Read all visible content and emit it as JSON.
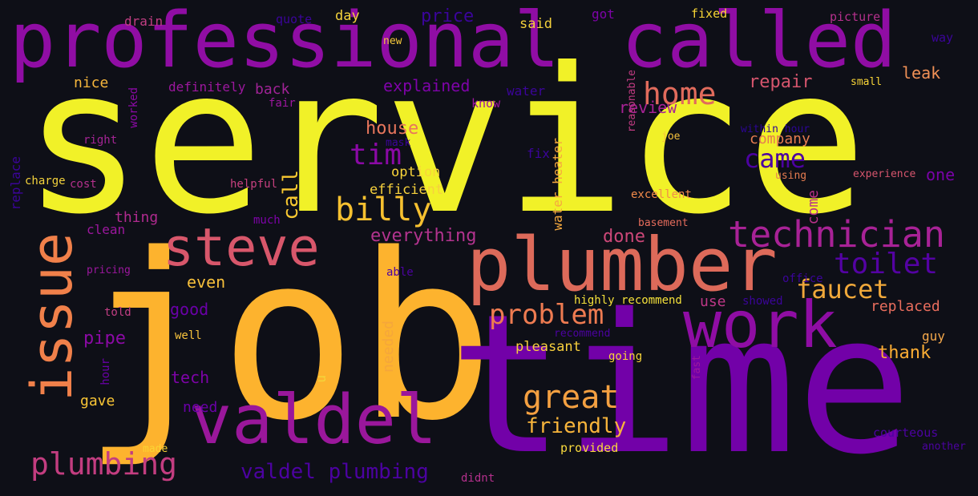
{
  "palette": {
    "background": "#0e0f17",
    "yellow": "#f1f128",
    "gold": "#f6d034",
    "amber": "#fdb32e",
    "orange": "#f4924a",
    "salmon": "#e16b5c",
    "pink": "#cd5178",
    "magenta": "#b3338f",
    "purple": "#900da4",
    "violet": "#6e00a8",
    "indigo": "#4c02a1",
    "navy": "#2f0596"
  },
  "words": [
    {
      "text": "service",
      "color": "#f1f128"
    },
    {
      "text": "job",
      "color": "#fdb32e"
    },
    {
      "text": "time",
      "color": "#7201a8"
    },
    {
      "text": "professional",
      "color": "#900da4"
    },
    {
      "text": "called",
      "color": "#900da4"
    },
    {
      "text": "plumber",
      "color": "#dd6a5a"
    },
    {
      "text": "work",
      "color": "#8f0da4"
    },
    {
      "text": "valdel",
      "color": "#9a179b"
    },
    {
      "text": "steve",
      "color": "#d8576b"
    },
    {
      "text": "issue",
      "color": "#f0804a"
    },
    {
      "text": "technician",
      "color": "#a82296"
    },
    {
      "text": "great",
      "color": "#f4a041"
    },
    {
      "text": "billy",
      "color": "#f6c030"
    },
    {
      "text": "toilet",
      "color": "#5402a3"
    },
    {
      "text": "home",
      "color": "#e16b5c"
    },
    {
      "text": "plumbing",
      "color": "#c33d80"
    },
    {
      "text": "problem",
      "color": "#ee7b51"
    },
    {
      "text": "faucet",
      "color": "#f0a83a"
    },
    {
      "text": "came",
      "color": "#4c02a1"
    },
    {
      "text": "tim",
      "color": "#8a09a5"
    },
    {
      "text": "valdel plumbing",
      "color": "#4c02a1"
    },
    {
      "text": "friendly",
      "color": "#f7b43b"
    },
    {
      "text": "everything",
      "color": "#b3338f"
    },
    {
      "text": "house",
      "color": "#e8765c"
    },
    {
      "text": "repair",
      "color": "#d6556d"
    },
    {
      "text": "leak",
      "color": "#f09056"
    },
    {
      "text": "explained",
      "color": "#7e03a8"
    },
    {
      "text": "company",
      "color": "#e67c50"
    },
    {
      "text": "call",
      "color": "#f9c931"
    },
    {
      "text": "done",
      "color": "#cc4778"
    },
    {
      "text": "one",
      "color": "#7a02a8"
    },
    {
      "text": "thank",
      "color": "#fcad34"
    },
    {
      "text": "replaced",
      "color": "#e96d5d"
    },
    {
      "text": "price",
      "color": "#3a049a"
    },
    {
      "text": "review",
      "color": "#a82296"
    },
    {
      "text": "come",
      "color": "#b93289"
    },
    {
      "text": "needed",
      "color": "#f5a63b"
    },
    {
      "text": "pipe",
      "color": "#8b0aa5"
    },
    {
      "text": "use",
      "color": "#bd3786"
    },
    {
      "text": "even",
      "color": "#f7c03b"
    },
    {
      "text": "back",
      "color": "#a02396"
    },
    {
      "text": "nice",
      "color": "#f6b63c"
    },
    {
      "text": "good",
      "color": "#6a00a8"
    },
    {
      "text": "tech",
      "color": "#7e03a8"
    },
    {
      "text": "need",
      "color": "#6a00a8"
    },
    {
      "text": "gave",
      "color": "#f9c535"
    },
    {
      "text": "option",
      "color": "#f9d43a"
    },
    {
      "text": "efficient",
      "color": "#f7d13d"
    },
    {
      "text": "pleasant",
      "color": "#f8d03d"
    },
    {
      "text": "guy",
      "color": "#f3a74b"
    },
    {
      "text": "thing",
      "color": "#b02a8f"
    },
    {
      "text": "clean",
      "color": "#9c179e"
    },
    {
      "text": "definitely",
      "color": "#9c179e"
    },
    {
      "text": "said",
      "color": "#f3d03b"
    },
    {
      "text": "day",
      "color": "#f4d23c"
    },
    {
      "text": "got",
      "color": "#7e03a8"
    },
    {
      "text": "drain",
      "color": "#c13e83"
    },
    {
      "text": "quote",
      "color": "#3b049a"
    },
    {
      "text": "fixed",
      "color": "#f9d534"
    },
    {
      "text": "picture",
      "color": "#b4308c"
    },
    {
      "text": "way",
      "color": "#3b049a"
    },
    {
      "text": "new",
      "color": "#f5c83c"
    },
    {
      "text": "small",
      "color": "#f8d437"
    },
    {
      "text": "water",
      "color": "#3b049a"
    },
    {
      "text": "know",
      "color": "#9c179e"
    },
    {
      "text": "fair",
      "color": "#9c179e"
    },
    {
      "text": "worked",
      "color": "#8b0aa5"
    },
    {
      "text": "right",
      "color": "#a32494"
    },
    {
      "text": "replace",
      "color": "#3b049a"
    },
    {
      "text": "charge",
      "color": "#f3d23c"
    },
    {
      "text": "cost",
      "color": "#b4308c"
    },
    {
      "text": "helpful",
      "color": "#c6407f"
    },
    {
      "text": "mask",
      "color": "#3b049a"
    },
    {
      "text": "fix",
      "color": "#3b049a"
    },
    {
      "text": "water heater",
      "color": "#f6a93e"
    },
    {
      "text": "reasonable",
      "color": "#c23b83"
    },
    {
      "text": "joe",
      "color": "#f5c23c"
    },
    {
      "text": "within hour",
      "color": "#2c0595"
    },
    {
      "text": "experience",
      "color": "#d6556d"
    },
    {
      "text": "using",
      "color": "#e67c50"
    },
    {
      "text": "excellent",
      "color": "#f28b4b"
    },
    {
      "text": "basement",
      "color": "#e66c5c"
    },
    {
      "text": "much",
      "color": "#7e03a8"
    },
    {
      "text": "office",
      "color": "#3b049a"
    },
    {
      "text": "showed",
      "color": "#3b049a"
    },
    {
      "text": "pricing",
      "color": "#9c179e"
    },
    {
      "text": "able",
      "color": "#4c02a1"
    },
    {
      "text": "told",
      "color": "#c13e83"
    },
    {
      "text": "highly recommend",
      "color": "#f4e03a"
    },
    {
      "text": "recommend",
      "color": "#4c02a1"
    },
    {
      "text": "well",
      "color": "#f6c23c"
    },
    {
      "text": "hour",
      "color": "#6a00a8"
    },
    {
      "text": "fast",
      "color": "#9c179e"
    },
    {
      "text": "going",
      "color": "#f7d43a"
    },
    {
      "text": "u",
      "color": "#f4d43a"
    },
    {
      "text": "made",
      "color": "#fbd433"
    },
    {
      "text": "provided",
      "color": "#f8d93d"
    },
    {
      "text": "didnt",
      "color": "#b4308c"
    },
    {
      "text": "courteous",
      "color": "#4c02a1"
    },
    {
      "text": "another",
      "color": "#4c02a1"
    }
  ]
}
